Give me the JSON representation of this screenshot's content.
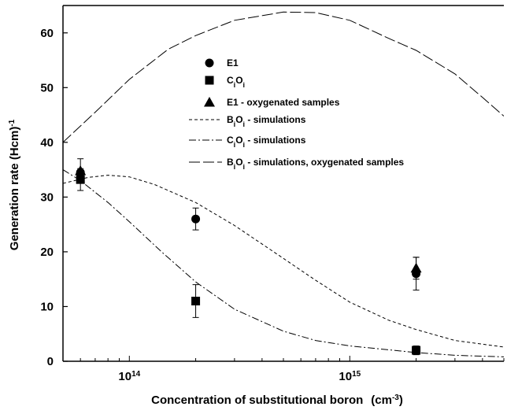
{
  "chart_data": {
    "type": "scatter",
    "xlabel": "Concentration of substitutional boron",
    "xunit": "(cm",
    "xunit_sup": "-3",
    "xunit_end": ")",
    "ylabel": "Generation rate (Hcm)",
    "ylabel_sup": "-1",
    "xscale": "log",
    "xlim": [
      50000000000000,
      5000000000000000
    ],
    "ylim": [
      0,
      65
    ],
    "yticks": [
      0,
      10,
      20,
      30,
      40,
      50,
      60
    ],
    "xticks": [
      {
        "value": 100000000000000,
        "base": "10",
        "exp": "14"
      },
      {
        "value": 1000000000000000,
        "base": "10",
        "exp": "15"
      }
    ],
    "grid": false,
    "legend_position": "upper-center",
    "series": [
      {
        "name": "E1",
        "kind": "markers",
        "marker": "circle",
        "points": [
          {
            "x": 60000000000000,
            "y": 34.5
          },
          {
            "x": 200000000000000,
            "y": 26,
            "err_low": 2,
            "err_high": 2
          },
          {
            "x": 2000000000000000,
            "y": 16,
            "err_low": 3,
            "err_high": 3
          }
        ]
      },
      {
        "name": "C",
        "name_parts": [
          [
            "C",
            ""
          ],
          [
            "i",
            "sub"
          ],
          [
            "O",
            ""
          ],
          [
            "i",
            "sub"
          ]
        ],
        "kind": "markers",
        "marker": "square",
        "points": [
          {
            "x": 60000000000000,
            "y": 33.2,
            "err_low": 2,
            "err_high": 2
          },
          {
            "x": 200000000000000,
            "y": 11,
            "err_low": 3,
            "err_high": 3
          },
          {
            "x": 2000000000000000,
            "y": 2,
            "err_low": 0.8,
            "err_high": 0.8
          }
        ]
      },
      {
        "name": "E1 - oxygenated samples",
        "kind": "markers",
        "marker": "triangle",
        "points": [
          {
            "x": 60000000000000,
            "y": 34.8,
            "err_low": 2.2,
            "err_high": 2.2
          },
          {
            "x": 2000000000000000,
            "y": 17,
            "err_low": 2,
            "err_high": 2
          }
        ]
      },
      {
        "name": "B",
        "name_parts": [
          [
            "B",
            ""
          ],
          [
            "i",
            "sub"
          ],
          [
            "O",
            ""
          ],
          [
            "i",
            "sub"
          ],
          [
            " - simulations",
            ""
          ]
        ],
        "kind": "line",
        "dash": "4,3",
        "points": [
          {
            "x": 50000000000000,
            "y": 32.5
          },
          {
            "x": 65000000000000,
            "y": 33.6
          },
          {
            "x": 80000000000000,
            "y": 34
          },
          {
            "x": 100000000000000,
            "y": 33.7
          },
          {
            "x": 130000000000000,
            "y": 32.3
          },
          {
            "x": 200000000000000,
            "y": 29
          },
          {
            "x": 300000000000000,
            "y": 24.8
          },
          {
            "x": 500000000000000,
            "y": 18.8
          },
          {
            "x": 700000000000000,
            "y": 14.8
          },
          {
            "x": 1000000000000000,
            "y": 10.8
          },
          {
            "x": 1500000000000000,
            "y": 7.5
          },
          {
            "x": 2000000000000000,
            "y": 5.8
          },
          {
            "x": 3000000000000000,
            "y": 3.8
          },
          {
            "x": 5000000000000000,
            "y": 2.6
          }
        ]
      },
      {
        "name": "C",
        "name_parts": [
          [
            "C",
            ""
          ],
          [
            "i",
            "sub"
          ],
          [
            "O",
            ""
          ],
          [
            "i",
            "sub"
          ],
          [
            " - simulations",
            ""
          ]
        ],
        "kind": "line",
        "dash": "9,3,2,3",
        "points": [
          {
            "x": 50000000000000,
            "y": 35
          },
          {
            "x": 60000000000000,
            "y": 33
          },
          {
            "x": 80000000000000,
            "y": 29
          },
          {
            "x": 100000000000000,
            "y": 25.5
          },
          {
            "x": 140000000000000,
            "y": 20
          },
          {
            "x": 200000000000000,
            "y": 14.5
          },
          {
            "x": 300000000000000,
            "y": 9.5
          },
          {
            "x": 500000000000000,
            "y": 5.5
          },
          {
            "x": 700000000000000,
            "y": 3.8
          },
          {
            "x": 1000000000000000,
            "y": 2.8
          },
          {
            "x": 2000000000000000,
            "y": 1.6
          },
          {
            "x": 3000000000000000,
            "y": 1.1
          },
          {
            "x": 5000000000000000,
            "y": 0.8
          }
        ]
      },
      {
        "name": "B",
        "name_parts": [
          [
            "B",
            ""
          ],
          [
            "i",
            "sub"
          ],
          [
            "O",
            ""
          ],
          [
            "i",
            "sub"
          ],
          [
            " - simulations, oxygenated samples",
            ""
          ]
        ],
        "kind": "line",
        "dash": "14,4",
        "points": [
          {
            "x": 50000000000000,
            "y": 40
          },
          {
            "x": 70000000000000,
            "y": 45.5
          },
          {
            "x": 100000000000000,
            "y": 51.5
          },
          {
            "x": 150000000000000,
            "y": 57
          },
          {
            "x": 200000000000000,
            "y": 59.5
          },
          {
            "x": 300000000000000,
            "y": 62.3
          },
          {
            "x": 500000000000000,
            "y": 63.8
          },
          {
            "x": 700000000000000,
            "y": 63.7
          },
          {
            "x": 1000000000000000,
            "y": 62.3
          },
          {
            "x": 1500000000000000,
            "y": 59
          },
          {
            "x": 2000000000000000,
            "y": 56.8
          },
          {
            "x": 3000000000000000,
            "y": 52.5
          },
          {
            "x": 4000000000000000,
            "y": 48.2
          },
          {
            "x": 5000000000000000,
            "y": 44.8
          }
        ]
      }
    ]
  }
}
